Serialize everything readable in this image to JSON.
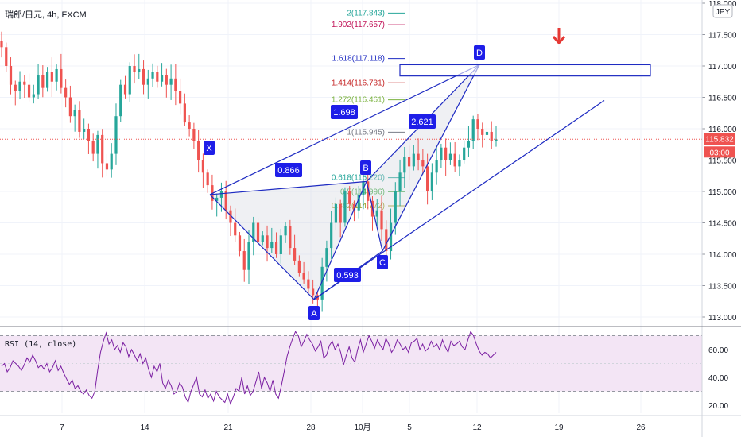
{
  "header": {
    "symbol": "瑞郎/日元, 4h, FXCM",
    "currency_button": "JPY"
  },
  "colors": {
    "up": "#26a69a",
    "down": "#ef5350",
    "pattern": "#1e2bc2",
    "rsi": "#7b1fa2",
    "rsi_band": "#f3e5f5",
    "grid": "#f0f3fa",
    "price_line": "#ef5350",
    "arrow": "#e53935"
  },
  "chart_data": [
    {
      "type": "candlestick",
      "title": "瑞郎/日元, 4h, FXCM",
      "y_axis": {
        "ticks": [
          "118.000",
          "117.500",
          "117.000",
          "116.500",
          "116.000",
          "115.500",
          "115.000",
          "114.500",
          "114.000",
          "113.500",
          "113.000"
        ],
        "range": [
          112.85,
          118.0
        ]
      },
      "x_axis": {
        "ticks": [
          "7",
          "14",
          "21",
          "28",
          "10月",
          "5",
          "12",
          "19",
          "26"
        ]
      },
      "last_price": {
        "value": "115.832",
        "countdown": "03:00"
      },
      "harmonic_pattern": {
        "points": [
          {
            "name": "X",
            "price": 114.95
          },
          {
            "name": "A",
            "price": 113.28
          },
          {
            "name": "B",
            "price": 115.16
          },
          {
            "name": "C",
            "price": 114.05
          },
          {
            "name": "D",
            "price": 117.02
          }
        ],
        "ratios": [
          "0.866",
          "0.593",
          "1.698",
          "2.621"
        ]
      },
      "fib_levels": [
        {
          "label": "2(117.843)",
          "price": 117.843,
          "color": "#26a69a"
        },
        {
          "label": "1.902(117.657)",
          "price": 117.657,
          "color": "#c2185b"
        },
        {
          "label": "1.618(117.118)",
          "price": 117.118,
          "color": "#1e2bc2"
        },
        {
          "label": "1.414(116.731)",
          "price": 116.731,
          "color": "#c62828"
        },
        {
          "label": "1.272(116.461)",
          "price": 116.461,
          "color": "#7cb342"
        },
        {
          "label": "1(115.945)",
          "price": 115.945,
          "color": "#787b86"
        },
        {
          "label": "0.618(115.220)",
          "price": 115.22,
          "color": "#26a69a"
        },
        {
          "label": "0.5(114.996)",
          "price": 114.996,
          "color": "#4caf50"
        },
        {
          "label": "0.382(114.772)",
          "price": 114.772,
          "color": "#9e9d24"
        }
      ],
      "target_zone": {
        "low": 116.84,
        "high": 117.02
      },
      "trend_channel_end": 116.45,
      "candle_series": [
        117.3,
        117.0,
        116.7,
        116.6,
        116.75,
        116.7,
        116.5,
        116.55,
        116.85,
        116.65,
        116.9,
        116.75,
        116.95,
        116.65,
        116.5,
        116.2,
        116.3,
        115.95,
        116.0,
        115.8,
        115.6,
        115.9,
        115.45,
        115.35,
        115.6,
        116.2,
        116.7,
        116.55,
        117.0,
        116.9,
        116.95,
        116.7,
        116.8,
        116.9,
        116.75,
        116.85,
        116.7,
        116.8,
        116.6,
        116.4,
        116.1,
        116.0,
        115.8,
        115.5,
        115.3,
        115.1,
        114.85,
        114.9,
        115.0,
        114.7,
        114.5,
        114.3,
        114.05,
        113.75,
        114.2,
        114.5,
        114.2,
        114.3,
        114.1,
        114.2,
        114.0,
        114.3,
        114.45,
        114.1,
        113.9,
        113.7,
        113.6,
        113.45,
        113.35,
        113.28,
        113.8,
        114.1,
        114.5,
        114.8,
        114.5,
        115.0,
        114.8,
        114.7,
        114.95,
        115.16,
        114.85,
        114.6,
        114.7,
        114.4,
        114.05,
        114.5,
        115.0,
        115.3,
        115.55,
        115.4,
        115.6,
        115.5,
        115.4,
        115.0,
        115.3,
        115.5,
        115.7,
        115.5,
        115.6,
        115.4,
        115.5,
        115.7,
        115.8,
        116.15,
        116.0,
        115.9,
        115.95,
        115.8,
        115.83
      ]
    },
    {
      "type": "line",
      "title": "RSI (14, close)",
      "y_axis": {
        "ticks": [
          "60.00",
          "40.00",
          "20.00"
        ],
        "range": [
          16,
          77
        ],
        "band": [
          30,
          70
        ]
      },
      "values": [
        48,
        50,
        44,
        47,
        52,
        50,
        48,
        45,
        49,
        54,
        51,
        56,
        52,
        47,
        49,
        46,
        50,
        44,
        47,
        52,
        45,
        48,
        43,
        39,
        35,
        38,
        32,
        34,
        30,
        28,
        31,
        27,
        25,
        30,
        45,
        58,
        66,
        72,
        64,
        67,
        60,
        63,
        58,
        65,
        62,
        55,
        60,
        56,
        52,
        57,
        50,
        54,
        46,
        40,
        48,
        44,
        50,
        36,
        32,
        38,
        34,
        28,
        30,
        36,
        33,
        26,
        22,
        30,
        35,
        40,
        28,
        26,
        31,
        25,
        28,
        23,
        30,
        26,
        24,
        22,
        28,
        21,
        26,
        32,
        30,
        40,
        28,
        34,
        27,
        30,
        37,
        44,
        32,
        40,
        36,
        30,
        38,
        28,
        25,
        34,
        44,
        55,
        62,
        68,
        73,
        70,
        62,
        66,
        71,
        67,
        64,
        59,
        62,
        66,
        54,
        56,
        63,
        66,
        60,
        64,
        58,
        49,
        56,
        62,
        54,
        51,
        60,
        67,
        58,
        64,
        70,
        66,
        61,
        67,
        63,
        60,
        68,
        64,
        58,
        61,
        67,
        64,
        60,
        62,
        58,
        65,
        66,
        68,
        60,
        64,
        59,
        61,
        66,
        62,
        64,
        60,
        67,
        62,
        58,
        66,
        63,
        64,
        66,
        62,
        60,
        67,
        73,
        70,
        64,
        59,
        56,
        58,
        57,
        54,
        56,
        58
      ]
    }
  ]
}
